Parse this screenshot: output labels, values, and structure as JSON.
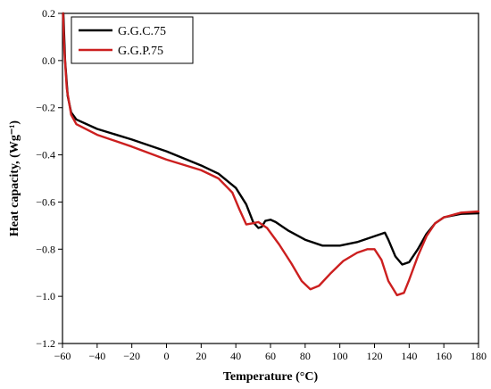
{
  "chart_data": {
    "type": "line",
    "xlabel": "Temperature (°C)",
    "ylabel": "Heat capacity, (Wg⁻¹)",
    "xlim": [
      -60,
      180
    ],
    "ylim": [
      -1.2,
      0.2
    ],
    "xticks": [
      -60,
      -40,
      -20,
      0,
      20,
      40,
      60,
      80,
      100,
      120,
      140,
      160,
      180
    ],
    "yticks": [
      0.2,
      0.0,
      -0.2,
      -0.4,
      -0.6,
      -0.8,
      -1.0,
      -1.2
    ],
    "xtick_labels": [
      "−60",
      "−40",
      "−20",
      "0",
      "20",
      "40",
      "60",
      "80",
      "100",
      "120",
      "140",
      "160",
      "180"
    ],
    "ytick_labels": [
      "0.2",
      "0.0",
      "−0.2",
      "−0.4",
      "−0.6",
      "−0.8",
      "−1.0",
      "−1.2"
    ],
    "legend_position": "top-left",
    "grid": false,
    "series": [
      {
        "name": "G.G.C.75",
        "color": "#000000",
        "points": [
          [
            -59.5,
            0.2
          ],
          [
            -58.5,
            0.0
          ],
          [
            -57,
            -0.15
          ],
          [
            -55,
            -0.22
          ],
          [
            -52,
            -0.25
          ],
          [
            -40,
            -0.29
          ],
          [
            -20,
            -0.335
          ],
          [
            0,
            -0.385
          ],
          [
            20,
            -0.445
          ],
          [
            30,
            -0.48
          ],
          [
            40,
            -0.54
          ],
          [
            46,
            -0.61
          ],
          [
            50,
            -0.685
          ],
          [
            53,
            -0.71
          ],
          [
            55,
            -0.705
          ],
          [
            57,
            -0.68
          ],
          [
            60,
            -0.675
          ],
          [
            63,
            -0.685
          ],
          [
            70,
            -0.72
          ],
          [
            80,
            -0.76
          ],
          [
            90,
            -0.785
          ],
          [
            100,
            -0.785
          ],
          [
            110,
            -0.77
          ],
          [
            120,
            -0.745
          ],
          [
            124,
            -0.735
          ],
          [
            126,
            -0.73
          ],
          [
            128,
            -0.76
          ],
          [
            132,
            -0.83
          ],
          [
            136,
            -0.865
          ],
          [
            140,
            -0.855
          ],
          [
            145,
            -0.8
          ],
          [
            150,
            -0.735
          ],
          [
            155,
            -0.69
          ],
          [
            160,
            -0.665
          ],
          [
            170,
            -0.65
          ],
          [
            180,
            -0.648
          ]
        ]
      },
      {
        "name": "G.G.P.75",
        "color": "#cc1f1f",
        "points": [
          [
            -59.7,
            0.2
          ],
          [
            -59,
            0.05
          ],
          [
            -57.5,
            -0.12
          ],
          [
            -55,
            -0.23
          ],
          [
            -52,
            -0.27
          ],
          [
            -40,
            -0.315
          ],
          [
            -20,
            -0.365
          ],
          [
            0,
            -0.42
          ],
          [
            20,
            -0.465
          ],
          [
            30,
            -0.5
          ],
          [
            38,
            -0.56
          ],
          [
            42,
            -0.63
          ],
          [
            46,
            -0.695
          ],
          [
            50,
            -0.69
          ],
          [
            53,
            -0.685
          ],
          [
            58,
            -0.71
          ],
          [
            65,
            -0.78
          ],
          [
            72,
            -0.86
          ],
          [
            78,
            -0.935
          ],
          [
            83,
            -0.97
          ],
          [
            88,
            -0.955
          ],
          [
            95,
            -0.9
          ],
          [
            102,
            -0.85
          ],
          [
            110,
            -0.815
          ],
          [
            116,
            -0.8
          ],
          [
            120,
            -0.8
          ],
          [
            124,
            -0.845
          ],
          [
            128,
            -0.935
          ],
          [
            133,
            -0.995
          ],
          [
            137,
            -0.985
          ],
          [
            140,
            -0.93
          ],
          [
            145,
            -0.83
          ],
          [
            150,
            -0.745
          ],
          [
            155,
            -0.69
          ],
          [
            160,
            -0.665
          ],
          [
            170,
            -0.645
          ],
          [
            180,
            -0.64
          ]
        ]
      }
    ]
  }
}
